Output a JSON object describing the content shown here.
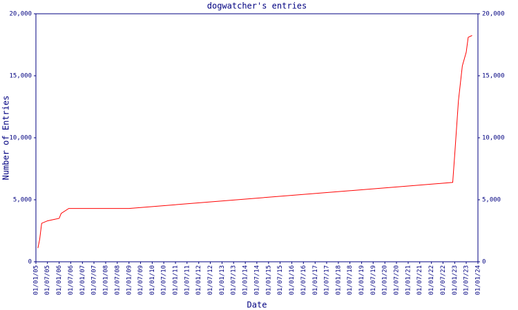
{
  "chart_data": {
    "type": "line",
    "title": "dogwatcher's entries",
    "xlabel": "Date",
    "ylabel": "Number of Entries",
    "color": "#ff0000",
    "x": [
      "2005-02-01",
      "2005-03-01",
      "2005-04-01",
      "2005-07-01",
      "2005-10-01",
      "2006-01-01",
      "2006-02-01",
      "2006-06-01",
      "2009-01-01",
      "2022-12-01",
      "2023-01-01",
      "2023-03-01",
      "2023-05-01",
      "2023-07-01",
      "2023-08-01",
      "2023-10-01"
    ],
    "values": [
      1100,
      1800,
      3100,
      3300,
      3400,
      3500,
      3900,
      4300,
      4300,
      6400,
      8600,
      13000,
      15800,
      16900,
      18100,
      18250
    ],
    "xlim": [
      "2005-01-01",
      "2024-01-01"
    ],
    "xticks": [
      {
        "value": "2005-01-01",
        "label": "01/01/05"
      },
      {
        "value": "2005-07-01",
        "label": "01/07/05"
      },
      {
        "value": "2006-01-01",
        "label": "01/01/06"
      },
      {
        "value": "2006-07-01",
        "label": "01/07/06"
      },
      {
        "value": "2007-01-01",
        "label": "01/01/07"
      },
      {
        "value": "2007-07-01",
        "label": "01/07/07"
      },
      {
        "value": "2008-01-01",
        "label": "01/01/08"
      },
      {
        "value": "2008-07-01",
        "label": "01/07/08"
      },
      {
        "value": "2009-01-01",
        "label": "01/01/09"
      },
      {
        "value": "2009-07-01",
        "label": "01/07/09"
      },
      {
        "value": "2010-01-01",
        "label": "01/01/10"
      },
      {
        "value": "2010-07-01",
        "label": "01/07/10"
      },
      {
        "value": "2011-01-01",
        "label": "01/01/11"
      },
      {
        "value": "2011-07-01",
        "label": "01/07/11"
      },
      {
        "value": "2012-01-01",
        "label": "01/01/12"
      },
      {
        "value": "2012-07-01",
        "label": "01/07/12"
      },
      {
        "value": "2013-01-01",
        "label": "01/01/13"
      },
      {
        "value": "2013-07-01",
        "label": "01/07/13"
      },
      {
        "value": "2014-01-01",
        "label": "01/01/14"
      },
      {
        "value": "2014-07-01",
        "label": "01/07/14"
      },
      {
        "value": "2015-01-01",
        "label": "01/01/15"
      },
      {
        "value": "2015-07-01",
        "label": "01/07/15"
      },
      {
        "value": "2016-01-01",
        "label": "01/01/16"
      },
      {
        "value": "2016-07-01",
        "label": "01/07/16"
      },
      {
        "value": "2017-01-01",
        "label": "01/01/17"
      },
      {
        "value": "2017-07-01",
        "label": "01/07/17"
      },
      {
        "value": "2018-01-01",
        "label": "01/01/18"
      },
      {
        "value": "2018-07-01",
        "label": "01/07/18"
      },
      {
        "value": "2019-01-01",
        "label": "01/01/19"
      },
      {
        "value": "2019-07-01",
        "label": "01/07/19"
      },
      {
        "value": "2020-01-01",
        "label": "01/01/20"
      },
      {
        "value": "2020-07-01",
        "label": "01/07/20"
      },
      {
        "value": "2021-01-01",
        "label": "01/01/21"
      },
      {
        "value": "2021-07-01",
        "label": "01/07/21"
      },
      {
        "value": "2022-01-01",
        "label": "01/01/22"
      },
      {
        "value": "2022-07-01",
        "label": "01/07/22"
      },
      {
        "value": "2023-01-01",
        "label": "01/01/23"
      },
      {
        "value": "2023-07-01",
        "label": "01/07/23"
      },
      {
        "value": "2024-01-01",
        "label": "01/01/24"
      }
    ],
    "ylim": [
      0,
      20000
    ],
    "yticks": [
      0,
      {
        "value": 5000,
        "label": "5,000"
      },
      {
        "value": 10000,
        "label": "10,000"
      },
      {
        "value": 15000,
        "label": "15,000"
      },
      {
        "value": 20000,
        "label": "20,000"
      }
    ],
    "right_axis": true
  }
}
